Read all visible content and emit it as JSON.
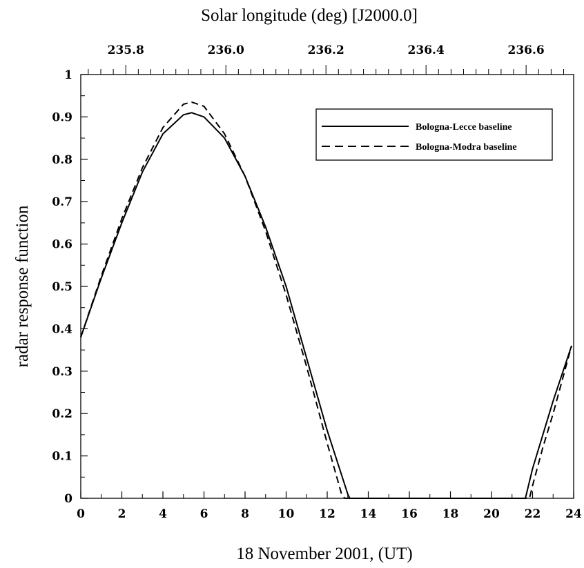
{
  "chart_data": {
    "type": "line",
    "xlabel": "18 November 2001, (UT)",
    "top_xlabel": "Solar longitude (deg) [J2000.0]",
    "ylabel": "radar response function",
    "xlim": [
      0,
      24
    ],
    "ylim": [
      0,
      1
    ],
    "top_xlim": [
      235.71,
      236.695
    ],
    "x_ticks": [
      "0",
      "2",
      "4",
      "6",
      "8",
      "10",
      "12",
      "14",
      "16",
      "18",
      "20",
      "22",
      "24"
    ],
    "y_ticks": [
      "0",
      "0.1",
      "0.2",
      "0.3",
      "0.4",
      "0.5",
      "0.6",
      "0.7",
      "0.8",
      "0.9",
      "1"
    ],
    "top_ticks": [
      "235.8",
      "236.0",
      "236.2",
      "236.4",
      "236.6"
    ],
    "grid": false,
    "legend_position": "top-right",
    "series": [
      {
        "name": "Bologna-Lecce baseline",
        "style": "solid",
        "x": [
          0,
          1,
          2,
          3,
          4,
          5,
          5.4,
          6,
          7,
          8,
          9,
          10,
          11,
          12,
          13,
          13.1,
          21.65,
          22,
          22.5,
          23,
          23.9
        ],
        "y": [
          0.38,
          0.52,
          0.65,
          0.77,
          0.86,
          0.905,
          0.91,
          0.9,
          0.85,
          0.76,
          0.64,
          0.5,
          0.33,
          0.16,
          0.01,
          0,
          0,
          0.07,
          0.15,
          0.23,
          0.36
        ]
      },
      {
        "name": "Bologna-Modra baseline",
        "style": "dashed",
        "x": [
          0,
          1,
          2,
          3,
          4,
          5,
          5.4,
          6,
          7,
          8,
          9,
          10,
          11,
          12,
          12.7,
          12.85,
          21.85,
          22,
          22.5,
          23,
          23.9
        ],
        "y": [
          0.38,
          0.525,
          0.66,
          0.78,
          0.875,
          0.93,
          0.935,
          0.925,
          0.86,
          0.76,
          0.63,
          0.48,
          0.31,
          0.13,
          0.01,
          0,
          0,
          0.03,
          0.12,
          0.2,
          0.36
        ]
      }
    ]
  }
}
